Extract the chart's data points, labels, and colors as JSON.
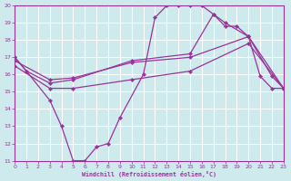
{
  "background_color": "#ceeaed",
  "grid_color": "#ffffff",
  "line_color": "#993399",
  "xlim": [
    0,
    23
  ],
  "ylim": [
    11,
    20
  ],
  "xticks": [
    0,
    1,
    2,
    3,
    4,
    5,
    6,
    7,
    8,
    9,
    10,
    11,
    12,
    13,
    14,
    15,
    16,
    17,
    18,
    19,
    20,
    21,
    22,
    23
  ],
  "yticks": [
    11,
    12,
    13,
    14,
    15,
    16,
    17,
    18,
    19,
    20
  ],
  "xlabel": "Windchill (Refroidissement éolien,°C)",
  "curve1_x": [
    0,
    1,
    3,
    4,
    5,
    6,
    7,
    8,
    9,
    11,
    12,
    13,
    14,
    15,
    16,
    17,
    18,
    19,
    20,
    21,
    22,
    23
  ],
  "curve1_y": [
    17,
    16.2,
    14.5,
    13,
    11,
    11,
    11.8,
    12,
    13.5,
    16,
    19.3,
    20,
    20,
    20,
    20,
    19.5,
    18.8,
    18.8,
    18.2,
    15.9,
    15.2,
    15.2
  ],
  "curve2_x": [
    0,
    1,
    3,
    5,
    10,
    15,
    17,
    18,
    20,
    22,
    23
  ],
  "curve2_y": [
    17,
    16.2,
    15.5,
    15.7,
    16.8,
    17.2,
    19.5,
    19.0,
    18.2,
    15.9,
    15.2
  ],
  "curve3_x": [
    0,
    3,
    5,
    10,
    15,
    20,
    23
  ],
  "curve3_y": [
    16.8,
    15.7,
    15.8,
    16.7,
    17.0,
    18.2,
    15.2
  ],
  "curve4_x": [
    0,
    3,
    5,
    10,
    15,
    20,
    23
  ],
  "curve4_y": [
    16.5,
    15.2,
    15.2,
    15.7,
    16.2,
    17.8,
    15.2
  ]
}
